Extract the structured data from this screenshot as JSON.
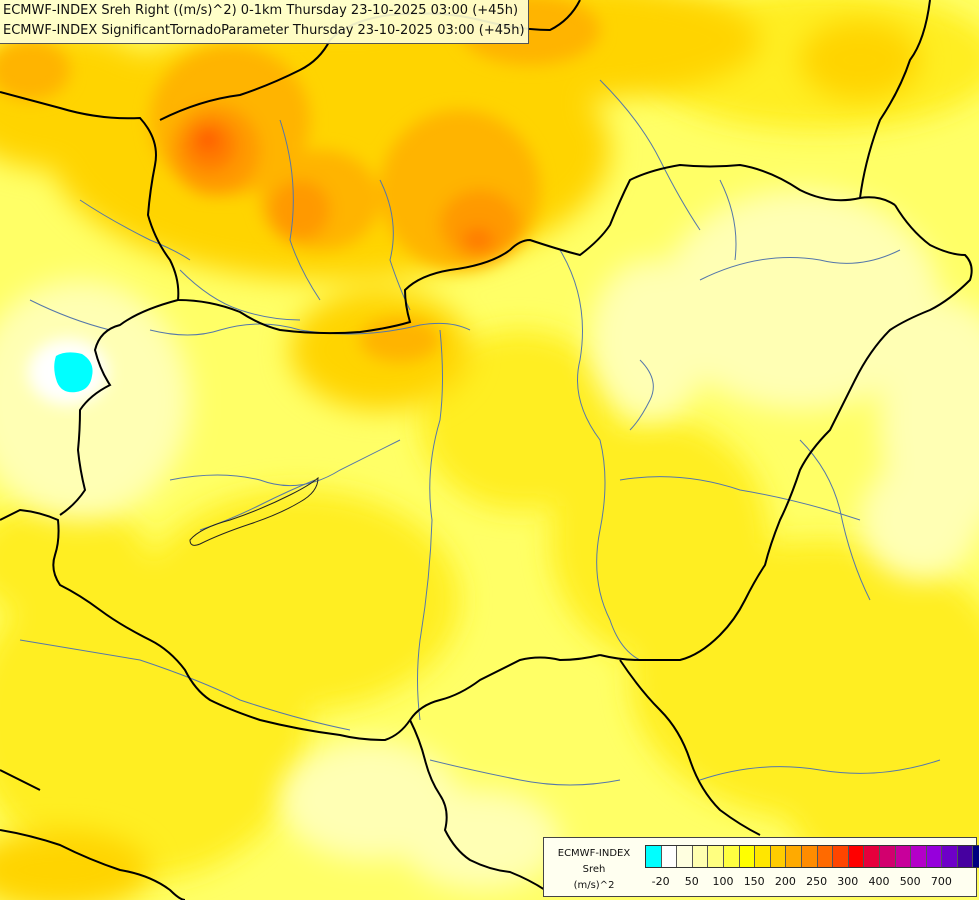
{
  "titles": {
    "line1": "ECMWF-INDEX Sreh Right ((m/s)^2) 0-1km Thursday 23-10-2025 03:00 (+45h)",
    "line2": "ECMWF-INDEX SignificantTornadoParameter Thursday 23-10-2025 03:00 (+45h)"
  },
  "legend": {
    "source": "ECMWF-INDEX",
    "variable": "Sreh",
    "unit": "(m/s)^2",
    "colors": [
      "#00ffff",
      "#ffffff",
      "#ffffe0",
      "#ffffb0",
      "#ffff80",
      "#ffff40",
      "#ffff00",
      "#ffe600",
      "#ffcc00",
      "#ffaa00",
      "#ff8c00",
      "#ff6a00",
      "#ff4500",
      "#ff0000",
      "#e6003c",
      "#d2006e",
      "#c8009b",
      "#b400c8",
      "#9600dc",
      "#6e00c8",
      "#4600a0",
      "#000080"
    ],
    "ticks": [
      {
        "label": "-20",
        "at": 1
      },
      {
        "label": "50",
        "at": 3
      },
      {
        "label": "100",
        "at": 5
      },
      {
        "label": "150",
        "at": 7
      },
      {
        "label": "200",
        "at": 9
      },
      {
        "label": "250",
        "at": 11
      },
      {
        "label": "300",
        "at": 13
      },
      {
        "label": "400",
        "at": 15
      },
      {
        "label": "500",
        "at": 17
      },
      {
        "label": "700",
        "at": 19
      }
    ]
  },
  "map_colors": {
    "base": "#ffff66",
    "pale": "#ffffb4",
    "yellow": "#ffee22",
    "gold": "#ffd400",
    "light_orange": "#ffb400",
    "orange": "#ff9900",
    "dark_orange": "#ff7a00",
    "red_orange": "#ff4a00",
    "cyan": "#00ffff",
    "white": "#ffffff",
    "border": "#000000",
    "river": "#5577aa"
  }
}
